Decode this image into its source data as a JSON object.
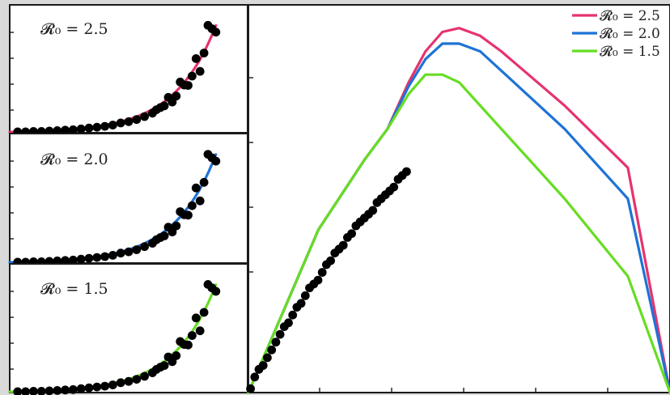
{
  "chart_data": [
    {
      "type": "scatter",
      "panel": "small-top",
      "label": "𝓡₀ = 2.5",
      "line_color": "#e6336f",
      "xlim": [
        0,
        30
      ],
      "ylim": [
        0,
        30
      ],
      "points": {
        "x": [
          1,
          2,
          3,
          4,
          5,
          6,
          7,
          8,
          9,
          10,
          11,
          12,
          13,
          14,
          15,
          16,
          17,
          18,
          18.5,
          19,
          19.5,
          20,
          20.5,
          21,
          21.5,
          22,
          22.5,
          23,
          23.5,
          24,
          24.5,
          25,
          25.5,
          26
        ],
        "y": [
          0.2,
          0.2,
          0.3,
          0.3,
          0.4,
          0.5,
          0.6,
          0.7,
          0.9,
          1.1,
          1.3,
          1.5,
          1.8,
          2.3,
          2.6,
          3.1,
          3.8,
          4.6,
          5.4,
          5.9,
          6.3,
          8.3,
          7.2,
          8.6,
          11.9,
          11.2,
          11.1,
          13.3,
          17.4,
          14.4,
          18.7,
          25.2,
          24.4,
          23.6
        ]
      },
      "series": [
        {
          "name": "",
          "x": [
            0,
            30
          ],
          "formula": "exp"
        }
      ]
    },
    {
      "type": "scatter",
      "panel": "small-middle",
      "label": "𝓡₀ = 2.0",
      "line_color": "#1e73d6",
      "xlim": [
        0,
        30
      ],
      "ylim": [
        0,
        30
      ],
      "points": {
        "x": [
          1,
          2,
          3,
          4,
          5,
          6,
          7,
          8,
          9,
          10,
          11,
          12,
          13,
          14,
          15,
          16,
          17,
          18,
          18.5,
          19,
          19.5,
          20,
          20.5,
          21,
          21.5,
          22,
          22.5,
          23,
          23.5,
          24,
          24.5,
          25,
          25.5,
          26
        ],
        "y": [
          0.2,
          0.2,
          0.3,
          0.3,
          0.4,
          0.5,
          0.6,
          0.7,
          0.9,
          1.1,
          1.3,
          1.5,
          1.8,
          2.3,
          2.6,
          3.1,
          3.8,
          4.6,
          5.4,
          5.9,
          6.3,
          8.3,
          7.2,
          8.6,
          11.9,
          11.2,
          11.1,
          13.3,
          17.4,
          14.4,
          18.7,
          25.2,
          24.4,
          23.6
        ]
      }
    },
    {
      "type": "scatter",
      "panel": "small-bottom",
      "label": "𝓡₀ = 1.5",
      "line_color": "#66dd22",
      "xlim": [
        0,
        30
      ],
      "ylim": [
        0,
        30
      ],
      "points": {
        "x": [
          1,
          2,
          3,
          4,
          5,
          6,
          7,
          8,
          9,
          10,
          11,
          12,
          13,
          14,
          15,
          16,
          17,
          18,
          18.5,
          19,
          19.5,
          20,
          20.5,
          21,
          21.5,
          22,
          22.5,
          23,
          23.5,
          24,
          24.5,
          25,
          25.5,
          26
        ],
        "y": [
          0.2,
          0.2,
          0.3,
          0.3,
          0.4,
          0.5,
          0.6,
          0.7,
          0.9,
          1.1,
          1.3,
          1.5,
          1.8,
          2.3,
          2.6,
          3.1,
          3.8,
          4.6,
          5.4,
          5.9,
          6.3,
          8.3,
          7.2,
          8.6,
          11.9,
          11.2,
          11.1,
          13.3,
          17.4,
          14.4,
          18.7,
          25.2,
          24.4,
          23.6
        ]
      }
    },
    {
      "type": "line",
      "panel": "main",
      "xlim": [
        0,
        100
      ],
      "ylim": [
        0,
        100
      ],
      "legend_position": "top-right",
      "points": {
        "x": [
          0.5,
          1.5,
          2.5,
          3.5,
          4.5,
          5.5,
          6.5,
          7.5,
          8.5,
          9.5,
          10.5,
          11.5,
          12.5,
          13.5,
          14.5,
          15.5,
          16.5,
          17.5,
          18.5,
          19.5,
          20.5,
          21.5,
          22.5,
          23.5,
          24.5,
          25.5,
          26.5,
          27.5,
          28.5,
          29.5,
          30.5,
          31.5,
          32.5,
          33.5,
          34.5,
          35.5,
          36.5,
          37.5
        ],
        "y": [
          1,
          4,
          6,
          7,
          9,
          11,
          13,
          15,
          17,
          18,
          20,
          22,
          23,
          25,
          27,
          28,
          29,
          31,
          33,
          34,
          36,
          37,
          38,
          40,
          41,
          43,
          44,
          45,
          46,
          47,
          49,
          50,
          51,
          52,
          53,
          55,
          56,
          57
        ]
      },
      "series": [
        {
          "name": "𝓡₀ = 2.5",
          "color": "#e6336f",
          "x": [
            0,
            16.6,
            27.5,
            33,
            38,
            42,
            46,
            50,
            55,
            60,
            75,
            90,
            100
          ],
          "y": [
            0,
            42,
            60,
            68,
            80,
            88,
            93,
            94,
            92,
            88,
            74,
            58,
            0
          ]
        },
        {
          "name": "𝓡₀ = 2.0",
          "color": "#1e73d6",
          "x": [
            0,
            16.6,
            27.5,
            33,
            38,
            42,
            46,
            50,
            55,
            60,
            75,
            90,
            100
          ],
          "y": [
            0,
            42,
            60,
            68,
            79,
            86,
            90,
            90,
            88,
            83,
            68,
            50,
            0
          ]
        },
        {
          "name": "𝓡₀ = 1.5",
          "color": "#66dd22",
          "x": [
            0,
            16.6,
            27.5,
            33,
            38,
            42,
            46,
            50,
            55,
            60,
            75,
            90,
            100
          ],
          "y": [
            0,
            42,
            60,
            68,
            77,
            82,
            82,
            80,
            74,
            68,
            50,
            30,
            0
          ]
        }
      ]
    }
  ]
}
